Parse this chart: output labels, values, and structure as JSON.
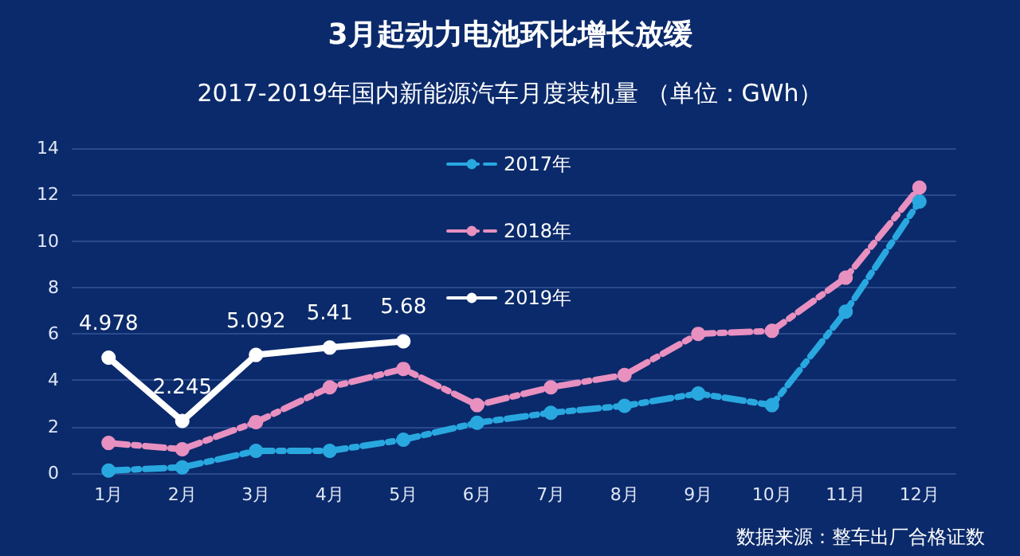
{
  "chart_data": {
    "type": "line",
    "title": "3月起动力电池环比增长放缓",
    "subtitle": "2017-2019年国内新能源汽车月度装机量 （单位：GWh）",
    "categories": [
      "1月",
      "2月",
      "3月",
      "4月",
      "5月",
      "6月",
      "7月",
      "8月",
      "9月",
      "10月",
      "11月",
      "12月"
    ],
    "series": [
      {
        "name": "2017年",
        "color": "#29a8e0",
        "line_style": "dashed",
        "values": [
          0.11,
          0.25,
          0.96,
          0.96,
          1.44,
          2.17,
          2.6,
          2.9,
          3.43,
          2.93,
          6.96,
          11.7
        ]
      },
      {
        "name": "2018年",
        "color": "#e890c0",
        "line_style": "dashed",
        "values": [
          1.3,
          1.03,
          2.2,
          3.7,
          4.49,
          2.93,
          3.7,
          4.23,
          6.0,
          6.13,
          8.42,
          12.3
        ]
      },
      {
        "name": "2019年",
        "color": "#ffffff",
        "line_style": "solid",
        "values": [
          4.978,
          2.245,
          5.092,
          5.41,
          5.68,
          null,
          null,
          null,
          null,
          null,
          null,
          null
        ],
        "value_labels": [
          "4.978",
          "2.245",
          "5.092",
          "5.41",
          "5.68",
          null,
          null,
          null,
          null,
          null,
          null,
          null
        ]
      }
    ],
    "ylim": [
      0,
      14
    ],
    "yticks": [
      0,
      2,
      4,
      6,
      8,
      10,
      12,
      14
    ],
    "grid": "y",
    "legend": "top right",
    "marker": "circle",
    "annotations": [
      "数据来源：整车出厂合格证数"
    ]
  }
}
